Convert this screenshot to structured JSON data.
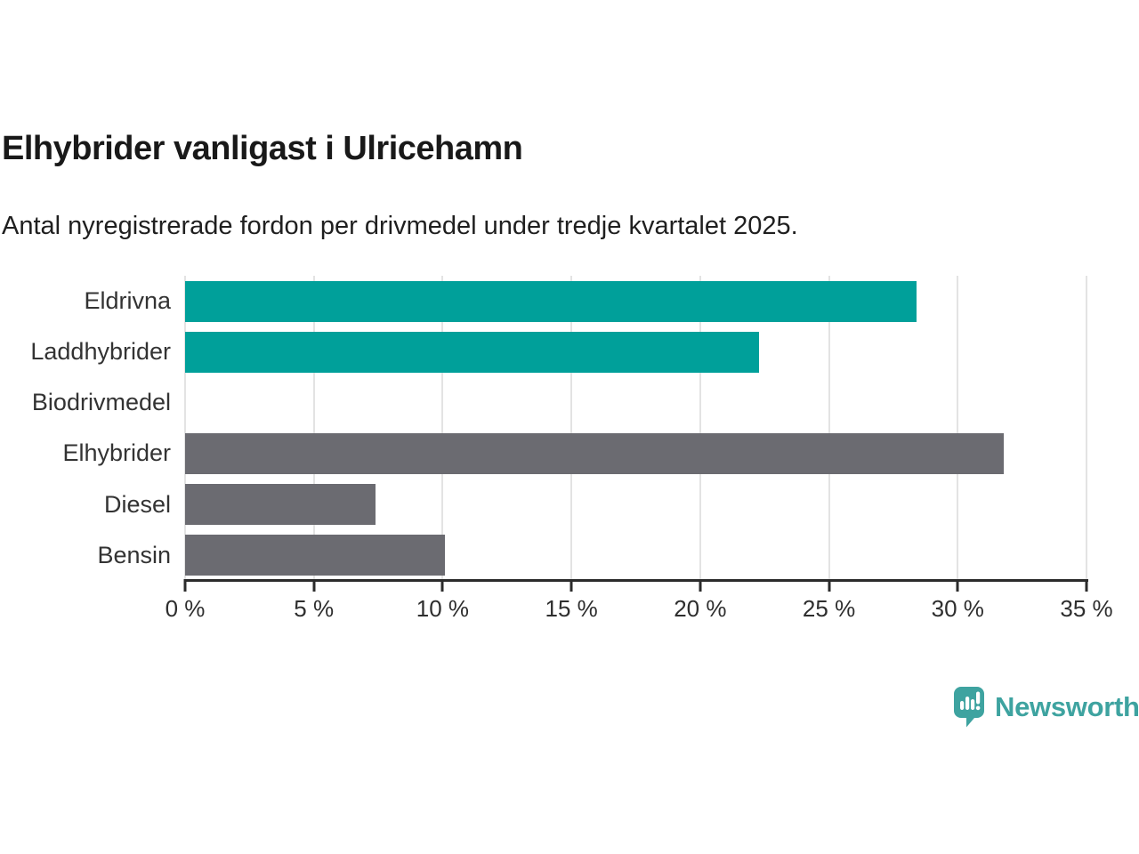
{
  "header": {
    "title": "Elhybrider vanligast i Ulricehamn",
    "subtitle": "Antal nyregistrerade fordon per drivmedel under tredje kvartalet 2025."
  },
  "chart_data": {
    "type": "bar",
    "orientation": "horizontal",
    "title": "Elhybrider vanligast i Ulricehamn",
    "subtitle": "Antal nyregistrerade fordon per drivmedel under tredje kvartalet 2025.",
    "categories": [
      "Eldrivna",
      "Laddhybrider",
      "Biodrivmedel",
      "Elhybrider",
      "Diesel",
      "Bensin"
    ],
    "values": [
      28.4,
      22.3,
      0,
      31.8,
      7.4,
      10.1
    ],
    "unit": "%",
    "bar_colors": [
      "#00a09a",
      "#00a09a",
      "#6b6b71",
      "#6b6b71",
      "#6b6b71",
      "#6b6b71"
    ],
    "x_ticks": [
      "0 %",
      "5 %",
      "10 %",
      "15 %",
      "20 %",
      "25 %",
      "30 %",
      "35 %"
    ],
    "x_tick_values": [
      0,
      5,
      10,
      15,
      20,
      25,
      30,
      35
    ],
    "xlim": [
      0,
      35
    ],
    "xlabel": "",
    "ylabel": "",
    "grid": true,
    "legend": "none"
  },
  "branding": {
    "logo_text": "Newsworthy",
    "logo_color": "#3ea3a0"
  },
  "colors": {
    "accent_teal": "#00a09a",
    "neutral_gray": "#6b6b71",
    "gridline": "#e3e3e3",
    "axis": "#2b2b2b",
    "title_text": "#191919",
    "label_text": "#333333"
  }
}
